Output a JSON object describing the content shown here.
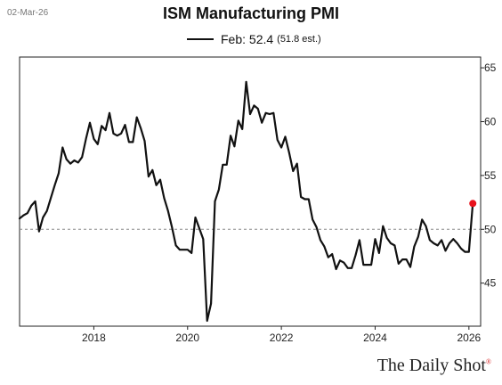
{
  "date_stamp": "02-Mar-26",
  "brand": "The Daily Shot",
  "brand_mark": "®",
  "legend": {
    "label": "Feb: 52.4",
    "note": "(51.8 est.)"
  },
  "colors": {
    "line": "#111111",
    "marker": "#e8121c",
    "reference": "#888888"
  },
  "chart_data": {
    "type": "line",
    "title": "ISM Manufacturing PMI",
    "xlabel": "",
    "ylabel": "",
    "x_ticks": [
      "2018",
      "2020",
      "2022",
      "2024",
      "2026"
    ],
    "y_ticks": [
      45,
      50,
      55,
      60,
      65
    ],
    "xlim": [
      "2016-06",
      "2026-04"
    ],
    "ylim": [
      41,
      66
    ],
    "reference_line": {
      "y": 50,
      "style": "dashed"
    },
    "grid": false,
    "legend_position": "top-center",
    "series": [
      {
        "name": "Feb: 52.4",
        "x": [
          "2016-06",
          "2016-07",
          "2016-08",
          "2016-09",
          "2016-10",
          "2016-11",
          "2016-12",
          "2017-01",
          "2017-02",
          "2017-03",
          "2017-04",
          "2017-05",
          "2017-06",
          "2017-07",
          "2017-08",
          "2017-09",
          "2017-10",
          "2017-11",
          "2017-12",
          "2018-01",
          "2018-02",
          "2018-03",
          "2018-04",
          "2018-05",
          "2018-06",
          "2018-07",
          "2018-08",
          "2018-09",
          "2018-10",
          "2018-11",
          "2018-12",
          "2019-01",
          "2019-02",
          "2019-03",
          "2019-04",
          "2019-05",
          "2019-06",
          "2019-07",
          "2019-08",
          "2019-09",
          "2019-10",
          "2019-11",
          "2019-12",
          "2020-01",
          "2020-02",
          "2020-03",
          "2020-04",
          "2020-05",
          "2020-06",
          "2020-07",
          "2020-08",
          "2020-09",
          "2020-10",
          "2020-11",
          "2020-12",
          "2021-01",
          "2021-02",
          "2021-03",
          "2021-04",
          "2021-05",
          "2021-06",
          "2021-07",
          "2021-08",
          "2021-09",
          "2021-10",
          "2021-11",
          "2021-12",
          "2022-01",
          "2022-02",
          "2022-03",
          "2022-04",
          "2022-05",
          "2022-06",
          "2022-07",
          "2022-08",
          "2022-09",
          "2022-10",
          "2022-11",
          "2022-12",
          "2023-01",
          "2023-02",
          "2023-03",
          "2023-04",
          "2023-05",
          "2023-06",
          "2023-07",
          "2023-08",
          "2023-09",
          "2023-10",
          "2023-11",
          "2023-12",
          "2024-01",
          "2024-02",
          "2024-03",
          "2024-04",
          "2024-05",
          "2024-06",
          "2024-07",
          "2024-08",
          "2024-09",
          "2024-10",
          "2024-11",
          "2024-12",
          "2025-01",
          "2025-02",
          "2025-03",
          "2025-04",
          "2025-05",
          "2025-06",
          "2025-07",
          "2025-08",
          "2025-09",
          "2025-10",
          "2025-11",
          "2025-12",
          "2026-01",
          "2026-02"
        ],
        "values": [
          51.0,
          51.3,
          51.5,
          52.2,
          52.6,
          49.8,
          51.1,
          51.7,
          52.9,
          54.1,
          55.2,
          57.6,
          56.5,
          56.1,
          56.4,
          56.2,
          56.7,
          58.4,
          59.9,
          58.4,
          57.9,
          59.6,
          59.2,
          60.8,
          58.9,
          58.7,
          58.9,
          59.7,
          58.1,
          58.1,
          60.4,
          59.4,
          58.2,
          54.9,
          55.5,
          54.1,
          54.6,
          52.9,
          51.7,
          50.2,
          48.5,
          48.1,
          48.1,
          48.1,
          47.8,
          51.1,
          50.1,
          49.1,
          41.5,
          43.1,
          52.6,
          53.7,
          56.0,
          56.0,
          58.7,
          57.7,
          60.1,
          59.3,
          63.7,
          60.7,
          61.5,
          61.2,
          59.9,
          60.8,
          60.7,
          60.8,
          58.3,
          57.6,
          58.6,
          57.1,
          55.4,
          56.1,
          53.0,
          52.8,
          52.8,
          50.9,
          50.2,
          49.0,
          48.4,
          47.4,
          47.7,
          46.3,
          47.1,
          46.9,
          46.4,
          46.4,
          47.6,
          49.0,
          46.7,
          46.7,
          46.7,
          49.1,
          47.8,
          50.3,
          49.2,
          48.7,
          48.5,
          46.8,
          47.2,
          47.2,
          46.5,
          48.4,
          49.3,
          50.9,
          50.3,
          49.0,
          48.7,
          48.5,
          49.0,
          48.0,
          48.7,
          49.1,
          48.7,
          48.2,
          47.9,
          47.9,
          52.4
        ]
      }
    ],
    "latest_point": {
      "x": "2026-02",
      "y": 52.4
    }
  }
}
